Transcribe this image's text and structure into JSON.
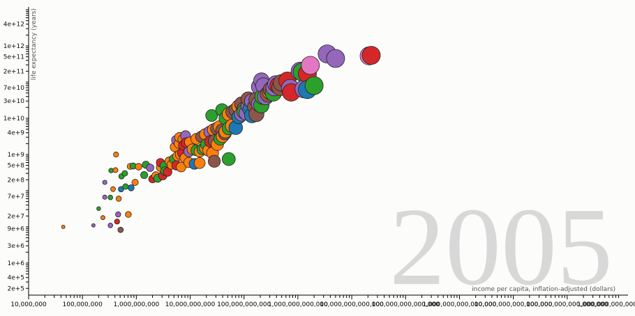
{
  "chart_data": {
    "type": "scatter",
    "title": "",
    "year_label": "2005",
    "xlabel": "income per capita, inflation-adjusted (dollars)",
    "ylabel": "life expectancy (years)",
    "x_scale": "log",
    "y_scale": "log",
    "xlim": [
      10000000,
      1000000000000000000
    ],
    "ylim": [
      130000,
      10000000000000
    ],
    "x_tick_labels": [
      {
        "value": 10000000,
        "label": "10,000,000"
      },
      {
        "value": 100000000,
        "label": "100,000,000"
      },
      {
        "value": 1000000000,
        "label": "1,000,000,000"
      },
      {
        "value": 10000000000,
        "label": "10,000,000,000"
      },
      {
        "value": 100000000000,
        "label": "100,000,000,000"
      },
      {
        "value": 1000000000000,
        "label": "1,000,000,000,000"
      },
      {
        "value": 10000000000000,
        "label": "10,000,000,000,000"
      },
      {
        "value": 100000000000000,
        "label": "100,000,000,000,000"
      },
      {
        "value": 1000000000000000,
        "label": "1,000,000,000,000,000"
      },
      {
        "value": 10000000000000000,
        "label": "10,000,000,000,000,000"
      },
      {
        "value": 100000000000000000,
        "label": "100,000,000,000,000,000"
      },
      {
        "value": 1000000000000000000,
        "label": "1,000,000,000,000,000,000"
      }
    ],
    "y_tick_labels": [
      {
        "value": 200000,
        "label": "2e+5"
      },
      {
        "value": 400000,
        "label": "4e+5"
      },
      {
        "value": 1000000,
        "label": "1e+6"
      },
      {
        "value": 3000000,
        "label": "3e+6"
      },
      {
        "value": 9000000,
        "label": "9e+6"
      },
      {
        "value": 20000000,
        "label": "2e+7"
      },
      {
        "value": 70000000,
        "label": "7e+7"
      },
      {
        "value": 200000000,
        "label": "2e+8"
      },
      {
        "value": 500000000,
        "label": "5e+8"
      },
      {
        "value": 1000000000,
        "label": "1e+9"
      },
      {
        "value": 4000000000,
        "label": "4e+9"
      },
      {
        "value": 10000000000,
        "label": "1e+10"
      },
      {
        "value": 30000000000,
        "label": "3e+10"
      },
      {
        "value": 70000000000,
        "label": "7e+10"
      },
      {
        "value": 200000000000,
        "label": "2e+11"
      },
      {
        "value": 500000000000,
        "label": "5e+11"
      },
      {
        "value": 1000000000000,
        "label": "1e+12"
      },
      {
        "value": 4000000000000,
        "label": "4e+12"
      }
    ],
    "colors": {
      "blue": "#1f77b4",
      "orange": "#ff7f0e",
      "green": "#2ca02c",
      "red": "#d62728",
      "purple": "#9467bd",
      "brown": "#8c564b",
      "pink": "#e377c2"
    },
    "grid": false,
    "legend": "none",
    "points": [
      {
        "x": 44000000.0,
        "y": 10000000.0,
        "c": "orange"
      },
      {
        "x": 160000000.0,
        "y": 11000000.0,
        "c": "purple"
      },
      {
        "x": 240000000.0,
        "y": 18000000.0,
        "c": "orange"
      },
      {
        "x": 330000000.0,
        "y": 11000000.0,
        "c": "purple"
      },
      {
        "x": 440000000.0,
        "y": 14000000.0,
        "c": "red"
      },
      {
        "x": 510000000.0,
        "y": 8300000.0,
        "c": "brown"
      },
      {
        "x": 200000000.0,
        "y": 32000000.0,
        "c": "green"
      },
      {
        "x": 460000000.0,
        "y": 22000000.0,
        "c": "purple"
      },
      {
        "x": 710000000.0,
        "y": 22000000.0,
        "c": "orange"
      },
      {
        "x": 260000000.0,
        "y": 66000000.0,
        "c": "purple"
      },
      {
        "x": 330000000.0,
        "y": 65000000.0,
        "c": "green"
      },
      {
        "x": 470000000.0,
        "y": 60000000.0,
        "c": "orange"
      },
      {
        "x": 370000000.0,
        "y": 110000000.0,
        "c": "orange"
      },
      {
        "x": 520000000.0,
        "y": 110000000.0,
        "c": "blue"
      },
      {
        "x": 630000000.0,
        "y": 130000000.0,
        "c": "green"
      },
      {
        "x": 800000000.0,
        "y": 120000000.0,
        "c": "blue"
      },
      {
        "x": 950000000.0,
        "y": 170000000.0,
        "c": "orange"
      },
      {
        "x": 260000000.0,
        "y": 170000000.0,
        "c": "purple"
      },
      {
        "x": 340000000.0,
        "y": 360000000.0,
        "c": "green"
      },
      {
        "x": 410000000.0,
        "y": 370000000.0,
        "c": "orange"
      },
      {
        "x": 530000000.0,
        "y": 250000000.0,
        "c": "green"
      },
      {
        "x": 610000000.0,
        "y": 300000000.0,
        "c": "green"
      },
      {
        "x": 420000000.0,
        "y": 1000000000.0,
        "c": "orange"
      },
      {
        "x": 770000000.0,
        "y": 470000000.0,
        "c": "orange"
      },
      {
        "x": 870000000.0,
        "y": 480000000.0,
        "c": "green"
      },
      {
        "x": 1100000000.0,
        "y": 460000000.0,
        "c": "orange"
      },
      {
        "x": 1500000000.0,
        "y": 520000000.0,
        "c": "green"
      },
      {
        "x": 1800000000.0,
        "y": 430000000.0,
        "c": "purple"
      },
      {
        "x": 1400000000.0,
        "y": 270000000.0,
        "c": "green"
      },
      {
        "x": 2000000000.0,
        "y": 210000000.0,
        "c": "red"
      },
      {
        "x": 2300000000.0,
        "y": 260000000.0,
        "c": "orange"
      },
      {
        "x": 2500000000.0,
        "y": 220000000.0,
        "c": "green"
      },
      {
        "x": 3100000000.0,
        "y": 260000000.0,
        "c": "red"
      },
      {
        "x": 3400000000.0,
        "y": 350000000.0,
        "c": "green"
      },
      {
        "x": 3800000000.0,
        "y": 330000000.0,
        "c": "red"
      },
      {
        "x": 2800000000.0,
        "y": 440000000.0,
        "c": "orange"
      },
      {
        "x": 3300000000.0,
        "y": 490000000.0,
        "c": "green"
      },
      {
        "x": 4500000000.0,
        "y": 520000000.0,
        "c": "orange"
      },
      {
        "x": 5600000000.0,
        "y": 500000000.0,
        "c": "red"
      },
      {
        "x": 6800000000.0,
        "y": 450000000.0,
        "c": "orange"
      },
      {
        "x": 2800000000.0,
        "y": 600000000.0,
        "c": "red"
      },
      {
        "x": 4100000000.0,
        "y": 650000000.0,
        "c": "orange"
      },
      {
        "x": 5000000000.0,
        "y": 750000000.0,
        "c": "green"
      },
      {
        "x": 5800000000.0,
        "y": 900000000.0,
        "c": "orange"
      },
      {
        "x": 6500000000.0,
        "y": 1000000000.0,
        "c": "orange"
      },
      {
        "x": 7200000000.0,
        "y": 1100000000.0,
        "c": "red"
      },
      {
        "x": 8000000000.0,
        "y": 800000000.0,
        "c": "orange"
      },
      {
        "x": 9500000000.0,
        "y": 600000000.0,
        "c": "orange"
      },
      {
        "x": 12000000000.0,
        "y": 550000000.0,
        "c": "blue"
      },
      {
        "x": 15000000000.0,
        "y": 580000000.0,
        "c": "orange"
      },
      {
        "x": 28000000000.0,
        "y": 650000000.0,
        "c": "brown"
      },
      {
        "x": 52000000000.0,
        "y": 750000000.0,
        "c": "green"
      },
      {
        "x": 9500000000.0,
        "y": 1200000000.0,
        "c": "purple"
      },
      {
        "x": 11000000000.0,
        "y": 1400000000.0,
        "c": "orange"
      },
      {
        "x": 13000000000.0,
        "y": 1300000000.0,
        "c": "green"
      },
      {
        "x": 15000000000.0,
        "y": 1200000000.0,
        "c": "orange"
      },
      {
        "x": 17000000000.0,
        "y": 1400000000.0,
        "c": "green"
      },
      {
        "x": 19000000000.0,
        "y": 1500000000.0,
        "c": "orange"
      },
      {
        "x": 22000000000.0,
        "y": 1300000000.0,
        "c": "orange"
      },
      {
        "x": 26000000000.0,
        "y": 1100000000.0,
        "c": "orange"
      },
      {
        "x": 20000000000.0,
        "y": 1900000000.0,
        "c": "green"
      },
      {
        "x": 24000000000.0,
        "y": 2300000000.0,
        "c": "red"
      },
      {
        "x": 28000000000.0,
        "y": 2400000000.0,
        "c": "brown"
      },
      {
        "x": 32000000000.0,
        "y": 1900000000.0,
        "c": "orange"
      },
      {
        "x": 36000000000.0,
        "y": 2700000000.0,
        "c": "green"
      },
      {
        "x": 40000000000.0,
        "y": 3200000000.0,
        "c": "orange"
      },
      {
        "x": 44000000000.0,
        "y": 3800000000.0,
        "c": "brown"
      },
      {
        "x": 13000000000.0,
        "y": 2700000000.0,
        "c": "orange"
      },
      {
        "x": 16000000000.0,
        "y": 3100000000.0,
        "c": "brown"
      },
      {
        "x": 19000000000.0,
        "y": 3600000000.0,
        "c": "orange"
      },
      {
        "x": 23000000000.0,
        "y": 4200000000.0,
        "c": "purple"
      },
      {
        "x": 27000000000.0,
        "y": 4800000000.0,
        "c": "orange"
      },
      {
        "x": 31000000000.0,
        "y": 5200000000.0,
        "c": "brown"
      },
      {
        "x": 35000000000.0,
        "y": 5800000000.0,
        "c": "orange"
      },
      {
        "x": 39000000000.0,
        "y": 4700000000.0,
        "c": "brown"
      },
      {
        "x": 45000000000.0,
        "y": 4300000000.0,
        "c": "orange"
      },
      {
        "x": 52000000000.0,
        "y": 5300000000.0,
        "c": "green"
      },
      {
        "x": 60000000000.0,
        "y": 6200000000.0,
        "c": "orange"
      },
      {
        "x": 70000000000.0,
        "y": 5500000000.0,
        "c": "blue"
      },
      {
        "x": 5500000000.0,
        "y": 2500000000.0,
        "c": "purple"
      },
      {
        "x": 6300000000.0,
        "y": 3000000000.0,
        "c": "orange"
      },
      {
        "x": 7300000000.0,
        "y": 2600000000.0,
        "c": "orange"
      },
      {
        "x": 8200000000.0,
        "y": 3300000000.0,
        "c": "purple"
      },
      {
        "x": 7500000000.0,
        "y": 1800000000.0,
        "c": "red"
      },
      {
        "x": 8500000000.0,
        "y": 2100000000.0,
        "c": "red"
      },
      {
        "x": 9800000000.0,
        "y": 2200000000.0,
        "c": "orange"
      },
      {
        "x": 5200000000.0,
        "y": 1600000000.0,
        "c": "orange"
      },
      {
        "x": 6200000000.0,
        "y": 2000000000.0,
        "c": "orange"
      },
      {
        "x": 52000000000.0,
        "y": 13000000000.0,
        "c": "orange"
      },
      {
        "x": 61000000000.0,
        "y": 15000000000.0,
        "c": "brown"
      },
      {
        "x": 70000000000.0,
        "y": 17000000000.0,
        "c": "brown"
      },
      {
        "x": 80000000000.0,
        "y": 21000000000.0,
        "c": "orange"
      },
      {
        "x": 90000000000.0,
        "y": 25000000000.0,
        "c": "brown"
      },
      {
        "x": 100000000000.0,
        "y": 18000000000.0,
        "c": "brown"
      },
      {
        "x": 25000000000.0,
        "y": 12000000000.0,
        "c": "green"
      },
      {
        "x": 39000000000.0,
        "y": 17000000000.0,
        "c": "green"
      },
      {
        "x": 45000000000.0,
        "y": 10000000000.0,
        "c": "green"
      },
      {
        "x": 90000000000.0,
        "y": 13000000000.0,
        "c": "purple"
      },
      {
        "x": 110000000000.0,
        "y": 14000000000.0,
        "c": "purple"
      },
      {
        "x": 130000000000.0,
        "y": 18000000000.0,
        "c": "blue"
      },
      {
        "x": 160000000000.0,
        "y": 21000000000.0,
        "c": "brown"
      },
      {
        "x": 190000000000.0,
        "y": 25000000000.0,
        "c": "purple"
      },
      {
        "x": 80000000000.0,
        "y": 11000000000.0,
        "c": "blue"
      },
      {
        "x": 100000000000.0,
        "y": 15000000000.0,
        "c": "green"
      },
      {
        "x": 120000000000.0,
        "y": 22000000000.0,
        "c": "purple"
      },
      {
        "x": 140000000000.0,
        "y": 30000000000.0,
        "c": "purple"
      },
      {
        "x": 170000000000.0,
        "y": 33000000000.0,
        "c": "brown"
      },
      {
        "x": 120000000000.0,
        "y": 34000000000.0,
        "c": "brown"
      },
      {
        "x": 140000000000.0,
        "y": 12000000000.0,
        "c": "blue"
      },
      {
        "x": 170000000000.0,
        "y": 13000000000.0,
        "c": "brown"
      },
      {
        "x": 220000000000.0,
        "y": 40000000000.0,
        "c": "green"
      },
      {
        "x": 250000000000.0,
        "y": 39000000000.0,
        "c": "purple"
      },
      {
        "x": 280000000000.0,
        "y": 46000000000.0,
        "c": "brown"
      },
      {
        "x": 310000000000.0,
        "y": 55000000000.0,
        "c": "orange"
      },
      {
        "x": 350000000000.0,
        "y": 50000000000.0,
        "c": "green"
      },
      {
        "x": 210000000000.0,
        "y": 23000000000.0,
        "c": "green"
      },
      {
        "x": 320000000000.0,
        "y": 62000000000.0,
        "c": "brown"
      },
      {
        "x": 360000000000.0,
        "y": 70000000000.0,
        "c": "purple"
      },
      {
        "x": 430000000000.0,
        "y": 80000000000.0,
        "c": "red"
      },
      {
        "x": 500000000000.0,
        "y": 95000000000.0,
        "c": "brown"
      },
      {
        "x": 390000000000.0,
        "y": 90000000000.0,
        "c": "purple"
      },
      {
        "x": 640000000000.0,
        "y": 110000000000.0,
        "c": "red"
      },
      {
        "x": 470000000000.0,
        "y": 72000000000.0,
        "c": "brown"
      },
      {
        "x": 720000000000.0,
        "y": 68000000000.0,
        "c": "purple"
      },
      {
        "x": 750000000000.0,
        "y": 52000000000.0,
        "c": "red"
      },
      {
        "x": 210000000000.0,
        "y": 110000000000.0,
        "c": "purple"
      },
      {
        "x": 230000000000.0,
        "y": 80000000000.0,
        "c": "purple"
      },
      {
        "x": 190000000000.0,
        "y": 75000000000.0,
        "c": "purple"
      },
      {
        "x": 1100000000000.0,
        "y": 200000000000.0,
        "c": "purple"
      },
      {
        "x": 1200000000000.0,
        "y": 190000000000.0,
        "c": "green"
      },
      {
        "x": 1500000000000.0,
        "y": 170000000000.0,
        "c": "red"
      },
      {
        "x": 1300000000000.0,
        "y": 65000000000.0,
        "c": "purple"
      },
      {
        "x": 1500000000000.0,
        "y": 62000000000.0,
        "c": "blue"
      },
      {
        "x": 2000000000000.0,
        "y": 80000000000.0,
        "c": "green"
      },
      {
        "x": 1700000000000.0,
        "y": 290000000000.0,
        "c": "pink"
      },
      {
        "x": 3500000000000.0,
        "y": 600000000000.0,
        "c": "purple"
      },
      {
        "x": 5000000000000.0,
        "y": 450000000000.0,
        "c": "purple"
      },
      {
        "x": 23000000000000.0,
        "y": 550000000000.0,
        "c": "red"
      },
      {
        "x": 21000000000000.0,
        "y": 530000000000.0,
        "c": "pink"
      }
    ]
  }
}
